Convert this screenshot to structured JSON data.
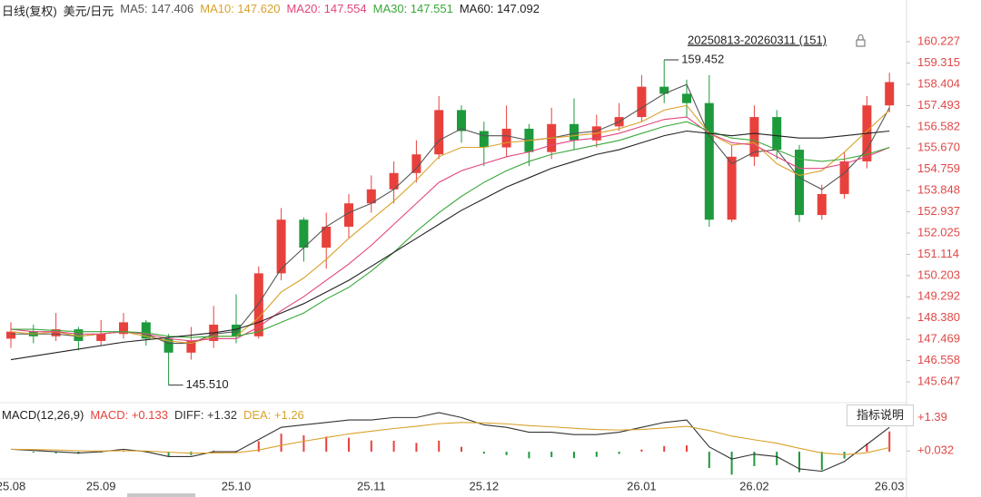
{
  "header": {
    "period": "日线(复权)",
    "symbol": "美元/日元"
  },
  "range_label": "20250813-20260311 (151)",
  "button": "指标说明",
  "chart_data": [
    {
      "type": "candlestick",
      "categories": [
        "25.08",
        null,
        null,
        null,
        "25.09",
        null,
        null,
        null,
        null,
        null,
        "25.10",
        null,
        null,
        null,
        null,
        null,
        "25.11",
        null,
        null,
        null,
        null,
        "25.12",
        null,
        null,
        null,
        null,
        null,
        null,
        "26.01",
        null,
        null,
        null,
        null,
        "26.02",
        null,
        null,
        null,
        null,
        null,
        "26.03"
      ],
      "open": [
        147.5,
        147.8,
        147.6,
        147.9,
        147.4,
        147.7,
        148.2,
        147.5,
        146.9,
        147.4,
        148.1,
        147.6,
        150.3,
        152.6,
        151.4,
        152.3,
        153.3,
        153.9,
        154.6,
        155.4,
        157.3,
        156.4,
        155.7,
        156.5,
        155.5,
        156.7,
        156.0,
        156.6,
        157.0,
        158.3,
        158.0,
        157.6,
        152.6,
        155.3,
        157.0,
        155.6,
        152.8,
        153.7,
        155.1,
        157.5
      ],
      "high": [
        148.2,
        148.1,
        148.6,
        148.0,
        148.3,
        148.6,
        148.3,
        147.7,
        148.0,
        148.9,
        149.4,
        150.6,
        153.1,
        152.7,
        152.9,
        153.7,
        154.5,
        155.1,
        156.0,
        157.9,
        157.5,
        156.8,
        157.5,
        156.7,
        157.4,
        157.8,
        157.1,
        157.6,
        158.8,
        159.452,
        158.6,
        158.8,
        155.8,
        157.5,
        157.3,
        155.8,
        154.1,
        155.5,
        157.9,
        158.9
      ],
      "low": [
        147.1,
        147.3,
        147.4,
        147.0,
        147.2,
        147.5,
        147.2,
        145.51,
        146.6,
        147.1,
        147.3,
        147.5,
        150.0,
        150.8,
        150.5,
        151.8,
        152.9,
        153.3,
        154.2,
        155.2,
        155.9,
        154.9,
        155.3,
        154.9,
        155.2,
        155.6,
        155.7,
        156.4,
        156.8,
        157.6,
        157.0,
        152.3,
        152.5,
        154.9,
        155.2,
        152.5,
        152.6,
        153.5,
        154.8,
        157.2
      ],
      "close": [
        147.8,
        147.6,
        147.9,
        147.4,
        147.7,
        148.2,
        147.5,
        146.9,
        147.4,
        148.1,
        147.6,
        150.3,
        152.6,
        151.4,
        152.3,
        153.3,
        153.9,
        154.6,
        155.4,
        157.3,
        156.4,
        155.7,
        156.5,
        155.5,
        156.7,
        156.0,
        156.6,
        157.0,
        158.3,
        158.0,
        157.6,
        152.6,
        155.3,
        157.0,
        155.6,
        152.8,
        153.7,
        155.1,
        157.5,
        158.5
      ],
      "up_color": "#e8413c",
      "down_color": "#1d9a3c",
      "series": [
        {
          "name": "MA5: 147.406",
          "color": "#555555",
          "values": [
            147.7,
            147.7,
            147.7,
            147.6,
            147.7,
            147.8,
            147.7,
            147.3,
            147.3,
            147.7,
            147.8,
            149.0,
            150.5,
            151.4,
            152.3,
            152.9,
            153.3,
            153.9,
            154.8,
            156.0,
            156.5,
            156.2,
            156.2,
            156.0,
            156.1,
            156.3,
            156.4,
            156.8,
            157.4,
            158.0,
            158.4,
            156.2,
            155.0,
            155.5,
            155.6,
            154.4,
            153.9,
            154.6,
            155.6,
            157.4
          ]
        },
        {
          "name": "MA10: 147.620",
          "color": "#d9a12a",
          "values": [
            147.8,
            147.7,
            147.8,
            147.6,
            147.7,
            147.8,
            147.6,
            147.4,
            147.3,
            147.6,
            147.6,
            148.4,
            149.5,
            150.1,
            150.9,
            151.8,
            152.6,
            153.4,
            154.3,
            155.3,
            155.7,
            155.7,
            155.9,
            156.0,
            156.1,
            156.2,
            156.3,
            156.5,
            156.8,
            157.3,
            157.5,
            156.3,
            155.8,
            155.9,
            155.0,
            154.5,
            154.7,
            155.5,
            156.4,
            157.3
          ]
        },
        {
          "name": "MA20: 147.554",
          "color": "#e2457e",
          "values": [
            147.9,
            147.8,
            147.8,
            147.7,
            147.7,
            147.8,
            147.7,
            147.5,
            147.4,
            147.5,
            147.5,
            148.0,
            148.7,
            149.3,
            150.0,
            150.7,
            151.5,
            152.4,
            153.3,
            154.2,
            154.7,
            155.0,
            155.3,
            155.5,
            155.8,
            156.0,
            156.1,
            156.3,
            156.6,
            156.9,
            157.0,
            156.3,
            155.9,
            155.8,
            155.3,
            154.8,
            154.8,
            155.0,
            155.3,
            155.7
          ]
        },
        {
          "name": "MA30: 147.551",
          "color": "#3aa83a",
          "values": [
            147.9,
            147.9,
            147.85,
            147.8,
            147.8,
            147.8,
            147.75,
            147.6,
            147.55,
            147.6,
            147.6,
            147.8,
            148.2,
            148.6,
            149.2,
            149.7,
            150.4,
            151.2,
            152.1,
            152.9,
            153.6,
            154.2,
            154.7,
            155.1,
            155.4,
            155.6,
            155.8,
            156.0,
            156.3,
            156.6,
            156.8,
            156.4,
            156.1,
            156.0,
            155.6,
            155.2,
            155.1,
            155.2,
            155.4,
            155.7
          ]
        },
        {
          "name": "MA60: 147.092",
          "color": "#222222",
          "values": [
            146.6,
            146.75,
            146.9,
            147.05,
            147.2,
            147.35,
            147.45,
            147.55,
            147.65,
            147.75,
            147.9,
            148.2,
            148.6,
            149.0,
            149.5,
            150.0,
            150.6,
            151.2,
            151.8,
            152.4,
            153.0,
            153.5,
            154.0,
            154.4,
            154.8,
            155.1,
            155.4,
            155.6,
            155.9,
            156.2,
            156.4,
            156.3,
            156.2,
            156.3,
            156.2,
            156.1,
            156.1,
            156.2,
            156.3,
            156.4
          ]
        }
      ],
      "max": 159.452,
      "min": {
        "value": 145.51,
        "label": "145.510"
      },
      "ylim": [
        144.91,
        161.63
      ],
      "yticks": [
        160.227,
        159.315,
        158.404,
        157.493,
        156.582,
        {
          "value": 155.67,
          "label": "155.670"
        },
        154.759,
        153.848,
        152.937,
        152.025,
        151.114,
        150.203,
        149.292,
        {
          "value": 148.38,
          "label": "148.380"
        },
        147.469,
        146.558,
        145.647
      ]
    },
    {
      "type": "macd",
      "title": "MACD(12,26,9)",
      "histogram": {
        "name": "MACD: +0.133",
        "color": "#e8413c",
        "down_color": "#1d9a3c",
        "values": [
          0,
          -0.04,
          -0.07,
          -0.09,
          -0.03,
          0.06,
          -0.03,
          -0.18,
          -0.14,
          0.05,
          0.04,
          0.43,
          0.74,
          0.67,
          0.62,
          0.57,
          0.46,
          0.45,
          0.36,
          0.45,
          0.2,
          -0.08,
          -0.14,
          -0.27,
          -0.22,
          -0.26,
          -0.21,
          -0.09,
          0.09,
          0.23,
          0.26,
          -0.67,
          -0.94,
          -0.59,
          -0.55,
          -0.84,
          -0.75,
          -0.28,
          0.34,
          0.83
        ]
      },
      "series": [
        {
          "name": "DIFF: +1.32",
          "color": "#333333",
          "values": [
            0.1,
            0.05,
            0.0,
            -0.05,
            0.0,
            0.1,
            0.0,
            -0.2,
            -0.2,
            0.0,
            0.0,
            0.5,
            1.0,
            1.1,
            1.2,
            1.3,
            1.3,
            1.4,
            1.4,
            1.6,
            1.4,
            1.1,
            1.0,
            0.8,
            0.8,
            0.7,
            0.7,
            0.8,
            1.0,
            1.2,
            1.3,
            0.2,
            -0.3,
            -0.1,
            -0.2,
            -0.7,
            -0.8,
            -0.4,
            0.3,
            1.0
          ]
        },
        {
          "name": "DEA: +1.26",
          "color": "#d9a12a",
          "values": [
            0.1,
            0.09,
            0.07,
            0.04,
            0.03,
            0.04,
            0.03,
            -0.02,
            -0.06,
            -0.05,
            -0.04,
            0.07,
            0.26,
            0.43,
            0.58,
            0.73,
            0.84,
            0.95,
            1.04,
            1.15,
            1.2,
            1.18,
            1.14,
            1.07,
            1.02,
            0.96,
            0.91,
            0.89,
            0.91,
            0.97,
            1.04,
            0.87,
            0.64,
            0.49,
            0.35,
            0.14,
            -0.05,
            -0.12,
            -0.04,
            0.17
          ]
        }
      ],
      "ylim": [
        -1.0,
        1.6
      ],
      "yticks": [
        {
          "value": 1.39,
          "label": "+1.39"
        },
        {
          "value": 0.032,
          "label": "+0.032"
        }
      ]
    }
  ]
}
